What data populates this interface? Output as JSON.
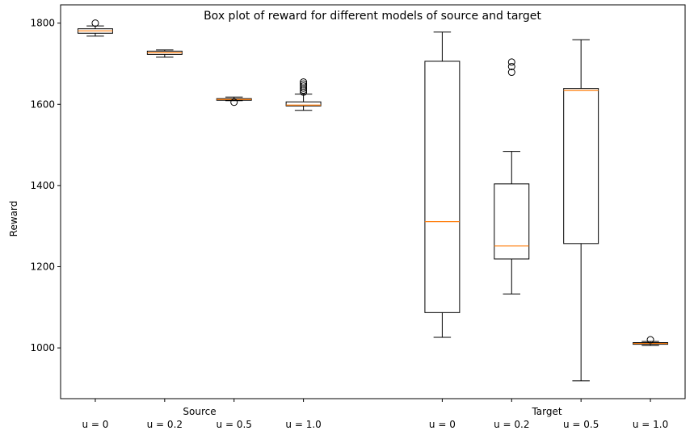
{
  "chart_data": {
    "type": "box",
    "title": "Box plot of reward for different models of source and target",
    "xlabel": "",
    "ylabel": "Reward",
    "ylim": [
      875,
      1845
    ],
    "yticks": [
      1000,
      1200,
      1400,
      1600,
      1800
    ],
    "groups": [
      {
        "name": "Source",
        "boxes": [
          {
            "label": "u = 0",
            "x": 1,
            "whisker_low": 1768,
            "q1": 1775,
            "median": 1781,
            "q3": 1786,
            "whisker_high": 1793,
            "outliers": [
              1800
            ]
          },
          {
            "label": "u = 0.2",
            "x": 2,
            "whisker_low": 1716,
            "q1": 1723,
            "median": 1727,
            "q3": 1731,
            "whisker_high": 1734,
            "outliers": []
          },
          {
            "label": "u = 0.5",
            "x": 3,
            "whisker_low": 1609,
            "q1": 1610,
            "median": 1612,
            "q3": 1614,
            "whisker_high": 1618,
            "outliers": [
              1605
            ]
          },
          {
            "label": "u = 1.0",
            "x": 4,
            "whisker_low": 1585,
            "q1": 1596,
            "median": 1598,
            "q3": 1606,
            "whisker_high": 1625,
            "outliers": [
              1630,
              1635,
              1640,
              1645,
              1650,
              1655
            ]
          }
        ]
      },
      {
        "name": "Target",
        "boxes": [
          {
            "label": "u = 0",
            "x": 6,
            "whisker_low": 1026,
            "q1": 1087,
            "median": 1311,
            "q3": 1706,
            "whisker_high": 1778,
            "outliers": []
          },
          {
            "label": "u = 0.2",
            "x": 7,
            "whisker_low": 1133,
            "q1": 1219,
            "median": 1251,
            "q3": 1404,
            "whisker_high": 1484,
            "outliers": [
              1679,
              1693,
              1704
            ]
          },
          {
            "label": "u = 0.5",
            "x": 8,
            "whisker_low": 919,
            "q1": 1257,
            "median": 1634,
            "q3": 1639,
            "whisker_high": 1759,
            "outliers": []
          },
          {
            "label": "u = 1.0",
            "x": 9,
            "whisker_low": 1006,
            "q1": 1009,
            "median": 1011,
            "q3": 1013,
            "whisker_high": 1016,
            "outliers": [
              1020
            ]
          }
        ]
      }
    ],
    "xlim": [
      0.5,
      9.5
    ],
    "grid": false,
    "colors": {
      "box": "#000000",
      "median": "#ff7f0e",
      "outlier": "#000000"
    }
  }
}
